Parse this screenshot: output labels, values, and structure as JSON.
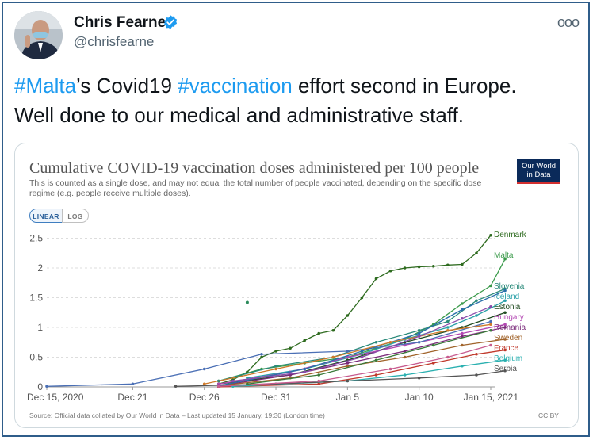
{
  "tweet": {
    "author_name": "Chris Fearne",
    "author_handle": "@chrisfearne",
    "more_glyph": "ooo",
    "text_parts": {
      "hashtag1": "#Malta",
      "mid1": "’s Covid19 ",
      "hashtag2": "#vaccination",
      "mid2": " effort second in Europe.",
      "line2": "Well done to our medical and administrative staff."
    }
  },
  "chart_card": {
    "title": "Cumulative COVID-19 vaccination doses administered per 100 people",
    "subtitle": "This is counted as a single dose, and may not equal the total number of people vaccinated, depending on the specific dose regime (e.g. people receive multiple doses).",
    "logo_line1": "Our World",
    "logo_line2": "in Data",
    "toggle_linear": "LINEAR",
    "toggle_log": "LOG",
    "source": "Source: Official data collated by Our World in Data – Last updated 15 January, 19:30 (London time)",
    "license": "CC BY"
  },
  "chart_data": {
    "type": "line",
    "title": "Cumulative COVID-19 vaccination doses administered per 100 people",
    "xlabel": "",
    "ylabel": "",
    "ylim": [
      0,
      2.6
    ],
    "xlim_days": [
      "2020-12-15",
      "2021-01-15"
    ],
    "x_tick_labels": [
      "Dec 15, 2020",
      "Dec 21",
      "Dec 26",
      "Dec 31",
      "Jan 5",
      "Jan 10",
      "Jan 15, 2021"
    ],
    "y_ticks": [
      0,
      0.5,
      1,
      1.5,
      2,
      2.5
    ],
    "y_tick_labels": [
      "0",
      "0.5",
      "1",
      "1.5",
      "2",
      "2.5"
    ],
    "grid": true,
    "series": [
      {
        "name": "Denmark",
        "color": "#2e6b1f",
        "points": [
          [
            "2020-12-27",
            0.05
          ],
          [
            "2020-12-28",
            0.12
          ],
          [
            "2020-12-29",
            0.25
          ],
          [
            "2020-12-30",
            0.5
          ],
          [
            "2020-12-31",
            0.6
          ],
          [
            "2021-01-01",
            0.65
          ],
          [
            "2021-01-02",
            0.78
          ],
          [
            "2021-01-03",
            0.9
          ],
          [
            "2021-01-04",
            0.95
          ],
          [
            "2021-01-05",
            1.2
          ],
          [
            "2021-01-06",
            1.5
          ],
          [
            "2021-01-07",
            1.82
          ],
          [
            "2021-01-08",
            1.95
          ],
          [
            "2021-01-09",
            2.0
          ],
          [
            "2021-01-10",
            2.02
          ],
          [
            "2021-01-11",
            2.03
          ],
          [
            "2021-01-12",
            2.05
          ],
          [
            "2021-01-13",
            2.06
          ],
          [
            "2021-01-14",
            2.25
          ],
          [
            "2021-01-15",
            2.55
          ]
        ]
      },
      {
        "name": "Malta",
        "color": "#3a9a4a",
        "points": [
          [
            "2020-12-27",
            0.1
          ],
          [
            "2020-12-30",
            0.3
          ],
          [
            "2021-01-02",
            0.4
          ],
          [
            "2021-01-05",
            0.5
          ],
          [
            "2021-01-07",
            0.65
          ],
          [
            "2021-01-09",
            0.8
          ],
          [
            "2021-01-11",
            1.05
          ],
          [
            "2021-01-13",
            1.4
          ],
          [
            "2021-01-15",
            1.7
          ],
          [
            "2021-01-16",
            2.15
          ]
        ]
      },
      {
        "name": "Slovenia",
        "color": "#2a8a7a",
        "points": [
          [
            "2020-12-27",
            0.1
          ],
          [
            "2020-12-31",
            0.35
          ],
          [
            "2021-01-04",
            0.5
          ],
          [
            "2021-01-07",
            0.75
          ],
          [
            "2021-01-10",
            0.95
          ],
          [
            "2021-01-12",
            1.1
          ],
          [
            "2021-01-14",
            1.45
          ],
          [
            "2021-01-16",
            1.65
          ]
        ]
      },
      {
        "name": "Iceland",
        "color": "#2aa0a8",
        "points": [
          [
            "2020-12-29",
            0.15
          ],
          [
            "2021-01-02",
            0.3
          ],
          [
            "2021-01-06",
            0.55
          ],
          [
            "2021-01-09",
            0.8
          ],
          [
            "2021-01-12",
            1.0
          ],
          [
            "2021-01-14",
            1.2
          ],
          [
            "2021-01-16",
            1.45
          ]
        ]
      },
      {
        "name": "Estonia",
        "color": "#1f4a1f",
        "points": [
          [
            "2020-12-27",
            0.05
          ],
          [
            "2021-01-01",
            0.2
          ],
          [
            "2021-01-05",
            0.45
          ],
          [
            "2021-01-09",
            0.75
          ],
          [
            "2021-01-13",
            1.0
          ],
          [
            "2021-01-16",
            1.25
          ]
        ]
      },
      {
        "name": "Hungary",
        "color": "#b347b3",
        "points": [
          [
            "2020-12-27",
            0.05
          ],
          [
            "2021-01-01",
            0.25
          ],
          [
            "2021-01-05",
            0.5
          ],
          [
            "2021-01-09",
            0.7
          ],
          [
            "2021-01-13",
            0.9
          ],
          [
            "2021-01-16",
            1.05
          ]
        ]
      },
      {
        "name": "Romania",
        "color": "#7a2a7a",
        "points": [
          [
            "2020-12-27",
            0.02
          ],
          [
            "2021-01-01",
            0.2
          ],
          [
            "2021-01-05",
            0.4
          ],
          [
            "2021-01-09",
            0.6
          ],
          [
            "2021-01-13",
            0.85
          ],
          [
            "2021-01-16",
            1.0
          ]
        ]
      },
      {
        "name": "Sweden",
        "color": "#a0632a",
        "points": [
          [
            "2020-12-27",
            0.02
          ],
          [
            "2021-01-01",
            0.15
          ],
          [
            "2021-01-05",
            0.35
          ],
          [
            "2021-01-09",
            0.5
          ],
          [
            "2021-01-13",
            0.7
          ],
          [
            "2021-01-16",
            0.8
          ]
        ]
      },
      {
        "name": "France",
        "color": "#c0392b",
        "points": [
          [
            "2020-12-27",
            0.0
          ],
          [
            "2021-01-03",
            0.05
          ],
          [
            "2021-01-07",
            0.2
          ],
          [
            "2021-01-11",
            0.4
          ],
          [
            "2021-01-14",
            0.55
          ],
          [
            "2021-01-16",
            0.62
          ]
        ]
      },
      {
        "name": "Belgium",
        "color": "#2ab0b0",
        "points": [
          [
            "2020-12-28",
            0.01
          ],
          [
            "2021-01-05",
            0.1
          ],
          [
            "2021-01-09",
            0.2
          ],
          [
            "2021-01-13",
            0.35
          ],
          [
            "2021-01-16",
            0.45
          ]
        ]
      },
      {
        "name": "Serbia",
        "color": "#555555",
        "points": [
          [
            "2020-12-24",
            0.01
          ],
          [
            "2020-12-31",
            0.05
          ],
          [
            "2021-01-05",
            0.1
          ],
          [
            "2021-01-10",
            0.15
          ],
          [
            "2021-01-14",
            0.2
          ],
          [
            "2021-01-16",
            0.27
          ]
        ]
      },
      {
        "name": "",
        "color": "#4a6fb5",
        "points": [
          [
            "2020-12-15",
            0.01
          ],
          [
            "2020-12-21",
            0.05
          ],
          [
            "2020-12-26",
            0.3
          ],
          [
            "2020-12-30",
            0.55
          ],
          [
            "2021-01-05",
            0.6
          ],
          [
            "2021-01-10",
            0.75
          ],
          [
            "2021-01-15",
            1.1
          ]
        ]
      },
      {
        "name": "",
        "color": "#2a6faa",
        "points": [
          [
            "2020-12-27",
            0.02
          ],
          [
            "2021-01-02",
            0.3
          ],
          [
            "2021-01-06",
            0.6
          ],
          [
            "2021-01-10",
            0.9
          ],
          [
            "2021-01-13",
            1.3
          ],
          [
            "2021-01-16",
            1.62
          ]
        ]
      },
      {
        "name": "",
        "color": "#d07a2a",
        "points": [
          [
            "2020-12-26",
            0.05
          ],
          [
            "2020-12-31",
            0.3
          ],
          [
            "2021-01-04",
            0.5
          ],
          [
            "2021-01-08",
            0.75
          ],
          [
            "2021-01-12",
            0.95
          ],
          [
            "2021-01-15",
            1.05
          ]
        ]
      },
      {
        "name": "",
        "color": "#8a4aaa",
        "points": [
          [
            "2020-12-28",
            0.1
          ],
          [
            "2021-01-02",
            0.25
          ],
          [
            "2021-01-06",
            0.5
          ],
          [
            "2021-01-10",
            0.85
          ],
          [
            "2021-01-13",
            1.15
          ],
          [
            "2021-01-15",
            1.35
          ]
        ]
      },
      {
        "name": "",
        "color": "#c75b8f",
        "points": [
          [
            "2020-12-27",
            0.01
          ],
          [
            "2021-01-03",
            0.1
          ],
          [
            "2021-01-08",
            0.3
          ],
          [
            "2021-01-12",
            0.5
          ],
          [
            "2021-01-15",
            0.7
          ]
        ]
      },
      {
        "name": "",
        "color": "#3a7a3a",
        "points": [
          [
            "2020-12-29",
            0.05
          ],
          [
            "2021-01-03",
            0.2
          ],
          [
            "2021-01-07",
            0.45
          ],
          [
            "2021-01-11",
            0.7
          ],
          [
            "2021-01-15",
            0.95
          ]
        ]
      }
    ],
    "outlier_points": [
      {
        "x": "2020-12-29",
        "y": 1.42,
        "color": "#2a8a5a"
      }
    ],
    "labels": [
      {
        "text": "Denmark",
        "color": "#2e6b1f"
      },
      {
        "text": "Malta",
        "color": "#3a9a4a"
      },
      {
        "text": "Slovenia",
        "color": "#2a8a7a"
      },
      {
        "text": "Iceland",
        "color": "#2aa0a8"
      },
      {
        "text": "Estonia",
        "color": "#1f4a1f"
      },
      {
        "text": "Hungary",
        "color": "#b347b3"
      },
      {
        "text": "Romania",
        "color": "#7a2a7a"
      },
      {
        "text": "Sweden",
        "color": "#a0632a"
      },
      {
        "text": "France",
        "color": "#c0392b"
      },
      {
        "text": "Belgium",
        "color": "#2ab0b0"
      },
      {
        "text": "Serbia",
        "color": "#555555"
      }
    ]
  }
}
